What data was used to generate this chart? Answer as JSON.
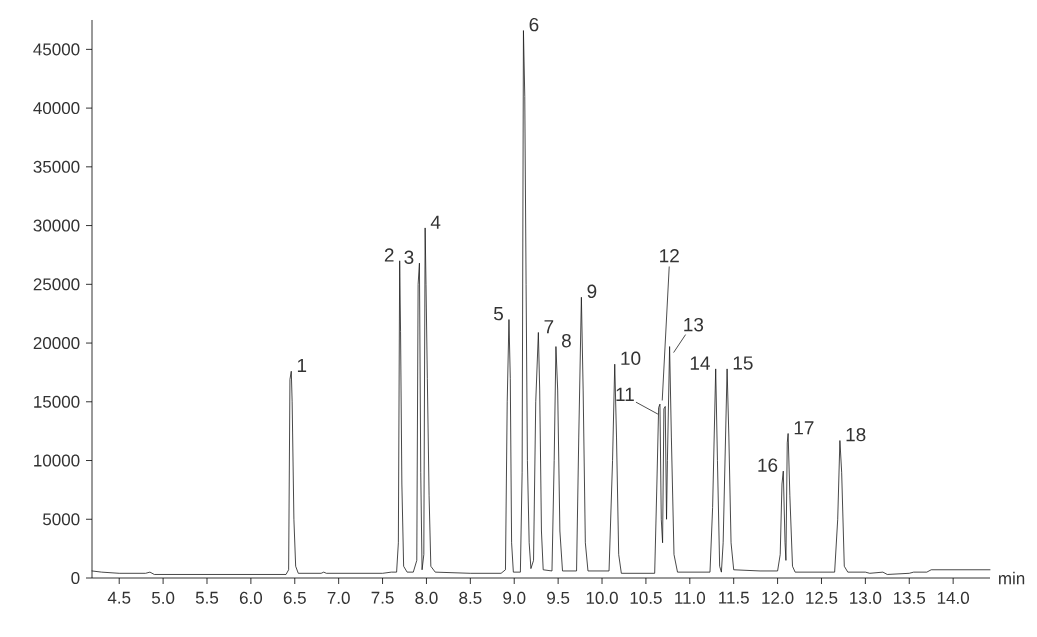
{
  "chart_data": {
    "type": "line",
    "xlabel": "min",
    "color": "#1a1a1a",
    "x": [
      4.19,
      4.3,
      4.5,
      4.8,
      4.85,
      4.9,
      5.5,
      6.0,
      6.4,
      6.43,
      6.445,
      6.46,
      6.47,
      6.49,
      6.51,
      6.54,
      6.8,
      6.83,
      6.86,
      7.5,
      7.6,
      7.66,
      7.68,
      7.695,
      7.705,
      7.72,
      7.74,
      7.78,
      7.85,
      7.89,
      7.905,
      7.92,
      7.935,
      7.95,
      7.97,
      7.985,
      7.995,
      8.01,
      8.03,
      8.05,
      8.1,
      8.5,
      8.85,
      8.9,
      8.92,
      8.94,
      8.955,
      8.97,
      8.99,
      9.07,
      9.09,
      9.105,
      9.12,
      9.135,
      9.15,
      9.17,
      9.19,
      9.22,
      9.245,
      9.275,
      9.29,
      9.31,
      9.33,
      9.43,
      9.455,
      9.475,
      9.495,
      9.52,
      9.55,
      9.71,
      9.735,
      9.765,
      9.785,
      9.81,
      9.84,
      10.08,
      10.12,
      10.145,
      10.165,
      10.19,
      10.22,
      10.6,
      10.625,
      10.645,
      10.66,
      10.675,
      10.69,
      10.705,
      10.72,
      10.735,
      10.745,
      10.77,
      10.79,
      10.82,
      10.86,
      11.23,
      11.26,
      11.295,
      11.315,
      11.34,
      11.36,
      11.38,
      11.425,
      11.445,
      11.47,
      11.5,
      11.8,
      12.0,
      12.03,
      12.05,
      12.065,
      12.085,
      12.095,
      12.11,
      12.12,
      12.14,
      12.17,
      12.2,
      12.65,
      12.685,
      12.71,
      12.73,
      12.76,
      12.8,
      13.0,
      13.05,
      13.2,
      13.25,
      13.5,
      13.55,
      13.7,
      13.75,
      14.0,
      14.42
    ],
    "values": [
      600,
      500,
      400,
      400,
      500,
      300,
      300,
      300,
      300,
      700,
      16900,
      17600,
      15000,
      5000,
      1000,
      400,
      400,
      500,
      400,
      400,
      500,
      500,
      3000,
      27000,
      21000,
      8000,
      1000,
      500,
      500,
      1500,
      25000,
      26800,
      9000,
      700,
      2000,
      29800,
      25000,
      17000,
      7000,
      1000,
      500,
      400,
      400,
      700,
      15000,
      22000,
      17000,
      3000,
      500,
      500,
      9000,
      46600,
      41000,
      25000,
      10000,
      3000,
      800,
      1500,
      15000,
      20900,
      16000,
      4000,
      700,
      600,
      10000,
      19700,
      16000,
      4000,
      600,
      600,
      12000,
      23900,
      16000,
      3000,
      600,
      600,
      10000,
      18200,
      12000,
      2000,
      400,
      400,
      8000,
      14500,
      14800,
      5000,
      3000,
      14400,
      14600,
      5000,
      10000,
      19700,
      12000,
      2000,
      500,
      500,
      6000,
      17800,
      10000,
      1000,
      500,
      3000,
      17800,
      12000,
      3000,
      700,
      600,
      600,
      2000,
      8000,
      9100,
      3000,
      1500,
      11500,
      12300,
      7000,
      1000,
      500,
      500,
      5000,
      11700,
      9000,
      1000,
      500,
      500,
      400,
      500,
      300,
      400,
      500,
      500,
      700,
      700,
      700
    ],
    "xlim": [
      4.19,
      14.42
    ],
    "ylim": [
      0,
      47500
    ],
    "xticks": [
      {
        "value": 4.5,
        "label": "4.5"
      },
      {
        "value": 5.0,
        "label": "5.0"
      },
      {
        "value": 5.5,
        "label": "5.5"
      },
      {
        "value": 6.0,
        "label": "6.0"
      },
      {
        "value": 6.5,
        "label": "6.5"
      },
      {
        "value": 7.0,
        "label": "7.0"
      },
      {
        "value": 7.5,
        "label": "7.5"
      },
      {
        "value": 8.0,
        "label": "8.0"
      },
      {
        "value": 8.5,
        "label": "8.5"
      },
      {
        "value": 9.0,
        "label": "9.0"
      },
      {
        "value": 9.5,
        "label": "9.5"
      },
      {
        "value": 10.0,
        "label": "10.0"
      },
      {
        "value": 10.5,
        "label": "10.5"
      },
      {
        "value": 11.0,
        "label": "11.0"
      },
      {
        "value": 11.5,
        "label": "11.5"
      },
      {
        "value": 12.0,
        "label": "12.0"
      },
      {
        "value": 12.5,
        "label": "12.5"
      },
      {
        "value": 13.0,
        "label": "13.0"
      },
      {
        "value": 13.5,
        "label": "13.5"
      },
      {
        "value": 14.0,
        "label": "14.0"
      }
    ],
    "yticks": [
      0,
      5000,
      10000,
      15000,
      20000,
      25000,
      30000,
      35000,
      40000,
      45000
    ],
    "annotations": [
      {
        "text": "1",
        "x": 6.46,
        "y": 17600
      },
      {
        "text": "2",
        "x": 7.695,
        "y": 27000
      },
      {
        "text": "3",
        "x": 7.92,
        "y": 26800
      },
      {
        "text": "4",
        "x": 7.985,
        "y": 29800
      },
      {
        "text": "5",
        "x": 8.94,
        "y": 22000
      },
      {
        "text": "6",
        "x": 9.105,
        "y": 46600
      },
      {
        "text": "7",
        "x": 9.275,
        "y": 20900
      },
      {
        "text": "8",
        "x": 9.475,
        "y": 19700
      },
      {
        "text": "9",
        "x": 9.765,
        "y": 23900
      },
      {
        "text": "10",
        "x": 10.145,
        "y": 18200
      },
      {
        "text": "11",
        "x": 10.66,
        "y": 14800
      },
      {
        "text": "12",
        "x": 10.72,
        "y": 14600
      },
      {
        "text": "13",
        "x": 10.77,
        "y": 19700
      },
      {
        "text": "14",
        "x": 11.295,
        "y": 17800
      },
      {
        "text": "15",
        "x": 11.425,
        "y": 17800
      },
      {
        "text": "16",
        "x": 12.065,
        "y": 9100
      },
      {
        "text": "17",
        "x": 12.12,
        "y": 12300
      },
      {
        "text": "18",
        "x": 12.71,
        "y": 11700
      }
    ]
  }
}
